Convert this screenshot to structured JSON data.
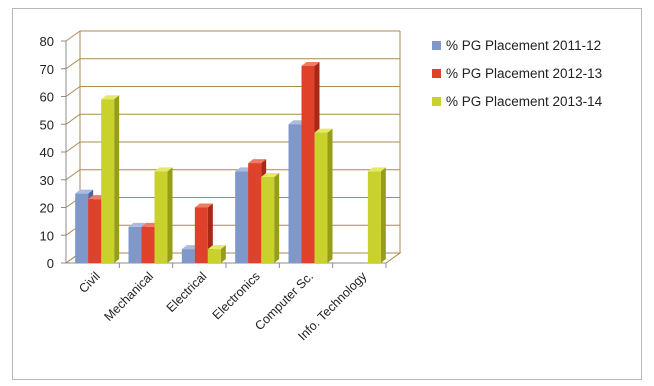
{
  "chart_data": {
    "type": "bar",
    "title": "",
    "xlabel": "",
    "ylabel": "",
    "categories": [
      "Civil",
      "Mechanical",
      "Electrical",
      "Electronics",
      "Computer Sc.",
      "Info. Technology"
    ],
    "series": [
      {
        "name": "% PG  Placement 2011-12",
        "values": [
          25,
          13,
          5,
          33,
          50,
          null
        ]
      },
      {
        "name": "% PG  Placement 2012-13",
        "values": [
          23,
          13,
          20,
          36,
          71,
          null
        ]
      },
      {
        "name": "% PG  Placement 2013-14",
        "values": [
          59,
          33,
          5,
          31,
          47,
          33
        ]
      }
    ],
    "ylim": [
      0,
      80
    ],
    "yticks": [
      0,
      10,
      20,
      30,
      40,
      50,
      60,
      70,
      80
    ],
    "grid": true,
    "legend_position": "right",
    "colors": {
      "series": [
        "#7f97c9",
        "#e0412a",
        "#c9d22c"
      ],
      "series_dark": [
        "#4d64a0",
        "#a82815",
        "#969e18"
      ],
      "series_light": [
        "#a9bbe0",
        "#f07a63",
        "#e3ea6a"
      ],
      "grid": "#a88a52",
      "axis": "#8c8c8c"
    }
  }
}
